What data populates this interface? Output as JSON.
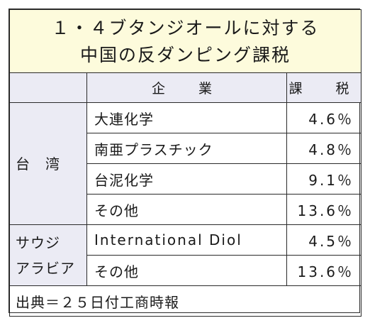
{
  "title": {
    "line1": "１・４ブタンジオールに対する",
    "line2": "中国の反ダンピング課税"
  },
  "header": {
    "company": "企　業",
    "tax": "課　税"
  },
  "groups": [
    {
      "label": "台　湾",
      "rows": [
        {
          "company": "大連化学",
          "rate": "4.6％"
        },
        {
          "company": "南亜プラスチック",
          "rate": "4.8％"
        },
        {
          "company": "台泥化学",
          "rate": "9.1％"
        },
        {
          "company": "その他",
          "rate": "13.6％"
        }
      ]
    },
    {
      "label_line1": "サウジ",
      "label_line2": "アラビア",
      "rows": [
        {
          "company": "International Diol",
          "rate": "4.5％"
        },
        {
          "company": "その他",
          "rate": "13.6％"
        }
      ]
    }
  ],
  "source": "出典＝２５日付工商時報"
}
